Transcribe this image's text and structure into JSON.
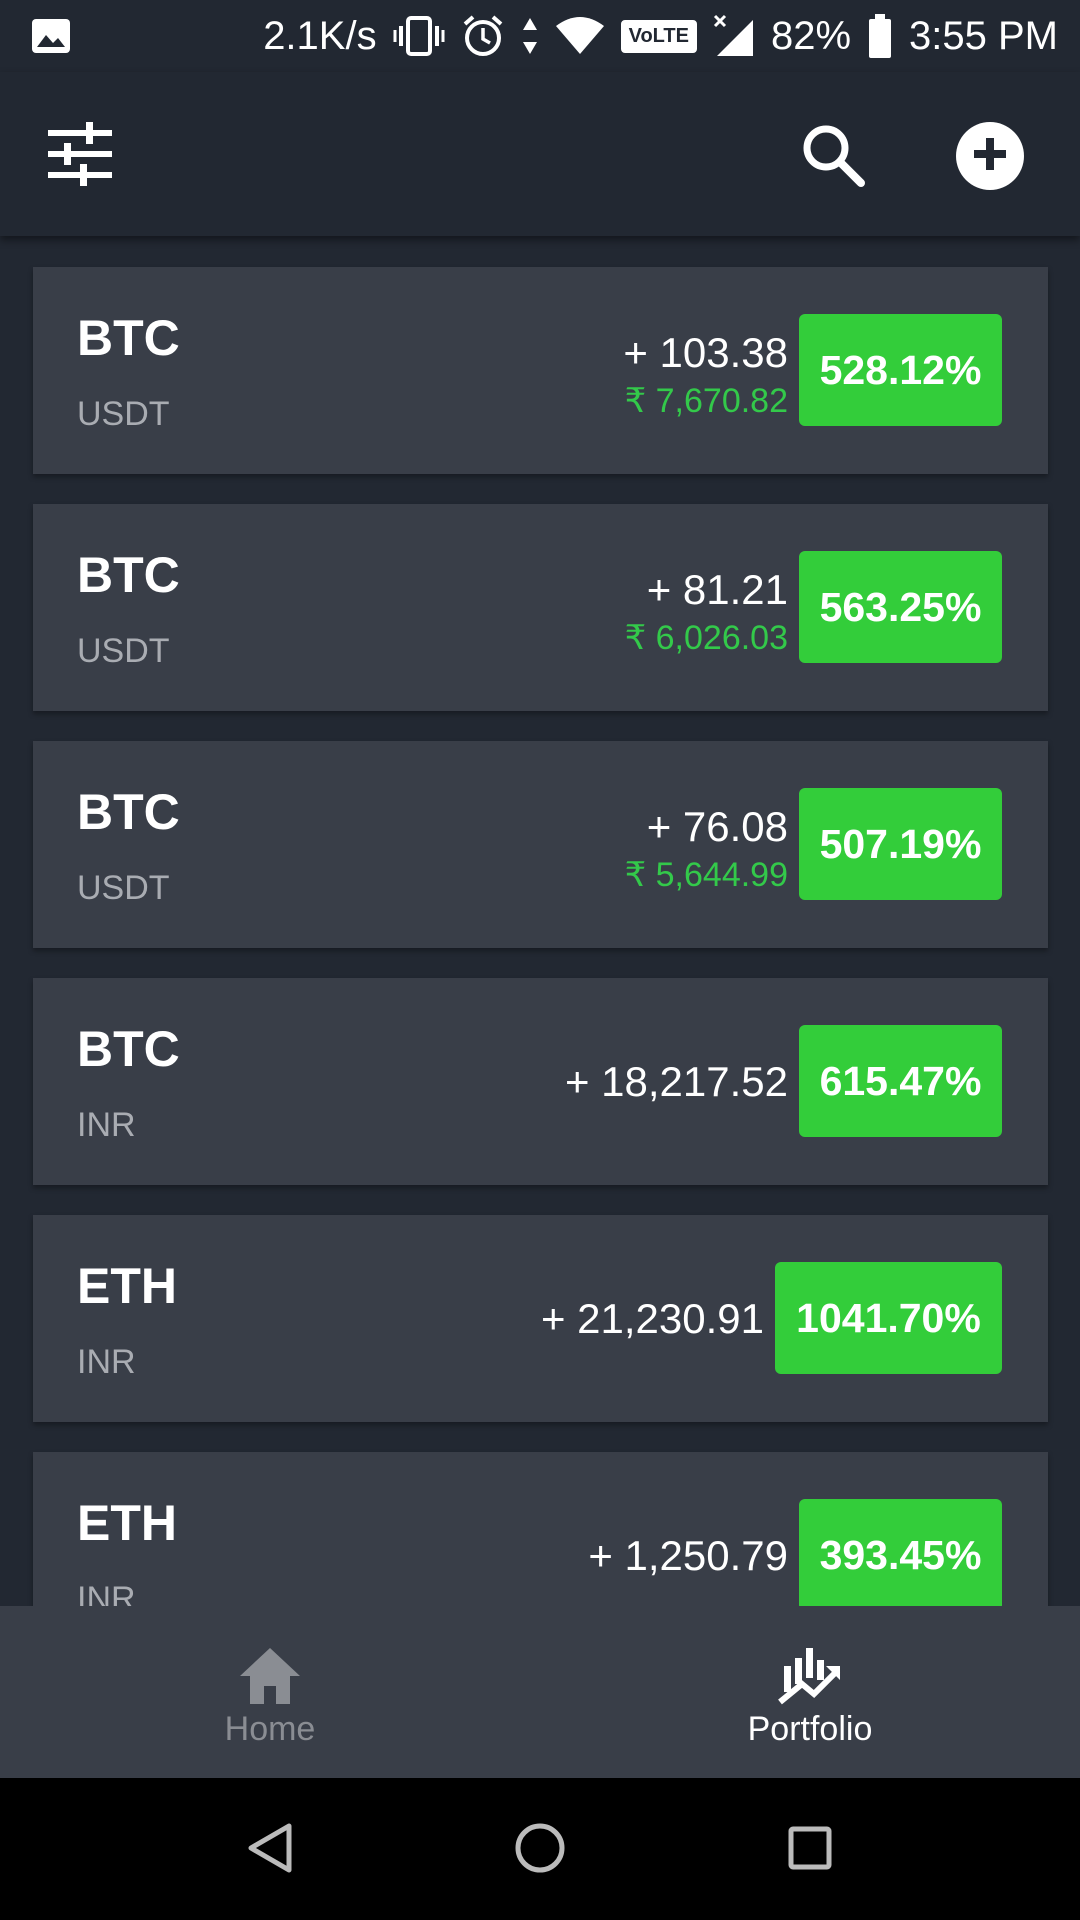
{
  "status_bar": {
    "network_speed": "2.1K/s",
    "volte": "VoLTE",
    "battery": "82%",
    "time": "3:55 PM"
  },
  "app_bar": {
    "icons": [
      "tune-icon",
      "search-icon",
      "add-icon"
    ]
  },
  "rows": [
    {
      "coin": "BTC",
      "pair": "USDT",
      "change": "+ 103.38",
      "value": "₹ 7,670.82",
      "percent": "528.12%"
    },
    {
      "coin": "BTC",
      "pair": "USDT",
      "change": "+ 81.21",
      "value": "₹ 6,026.03",
      "percent": "563.25%"
    },
    {
      "coin": "BTC",
      "pair": "USDT",
      "change": "+ 76.08",
      "value": "₹ 5,644.99",
      "percent": "507.19%"
    },
    {
      "coin": "BTC",
      "pair": "INR",
      "change": "+ 18,217.52",
      "value": "",
      "percent": "615.47%"
    },
    {
      "coin": "ETH",
      "pair": "INR",
      "change": "+ 21,230.91",
      "value": "",
      "percent": "1041.70%"
    },
    {
      "coin": "ETH",
      "pair": "INR",
      "change": "+ 1,250.79",
      "value": "",
      "percent": "393.45%"
    }
  ],
  "bottom_nav": {
    "home_label": "Home",
    "portfolio_label": "Portfolio",
    "active": "portfolio"
  },
  "colors": {
    "background": "#222832",
    "card": "#393e48",
    "positive": "#33cd3a",
    "secondary_text": "#a9acb2"
  }
}
